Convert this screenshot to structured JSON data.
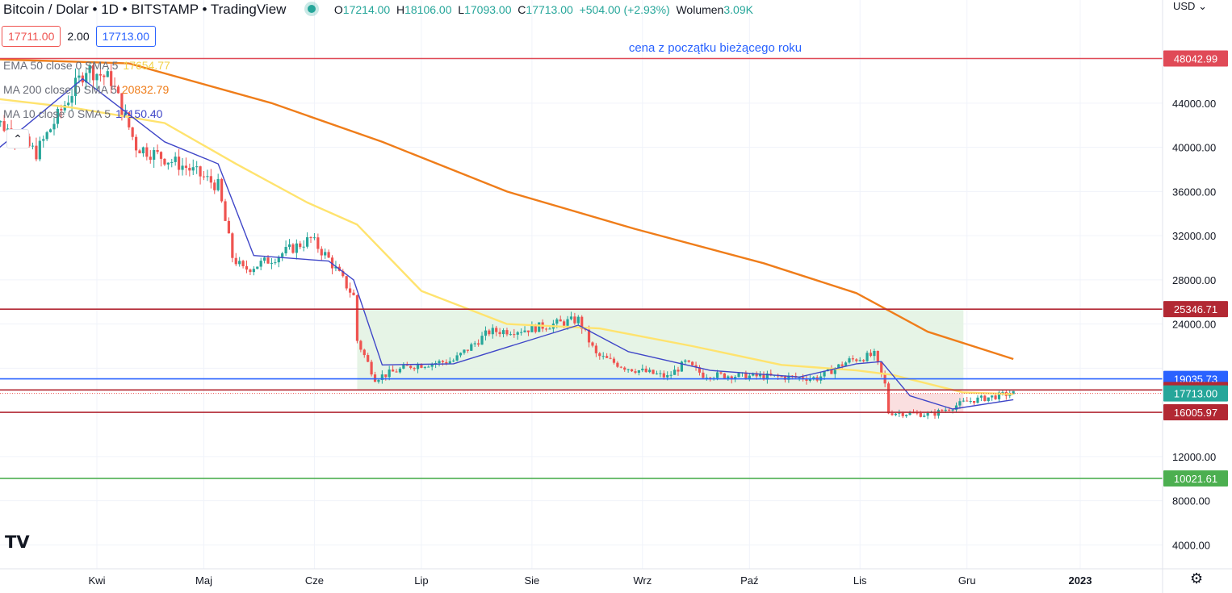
{
  "header": {
    "title": "Bitcoin / Dolar • 1D • BITSTAMP • TradingView",
    "o_label": "O",
    "o_value": "17214.00",
    "h_label": "H",
    "h_value": "18106.00",
    "l_label": "L",
    "l_value": "17093.00",
    "c_label": "C",
    "c_value": "17713.00",
    "change": "+504.00 (+2.93%)",
    "volume_label": "Wolumen",
    "volume_value": "3.09K"
  },
  "quote": {
    "bid": "17711.00",
    "spread": "2.00",
    "ask": "17713.00"
  },
  "indicators": [
    {
      "label": "EMA 50 close 0 SMA 5",
      "value": "17654.77",
      "color": "#ffe36e"
    },
    {
      "label": "MA 200 close 0 SMA 5",
      "value": "20832.79",
      "color": "#ef7d1a"
    },
    {
      "label": "MA 10 close 0 SMA 5",
      "value": "17150.40",
      "color": "#3f46c8"
    }
  ],
  "currency": "USD",
  "icons": {
    "collapse": "chevron-up-icon",
    "settings": "gear-icon",
    "logo": "tradingview-logo-icon"
  },
  "colors": {
    "up": "#26a69a",
    "down": "#ef5350",
    "support": "#b22833",
    "blue_level": "#2962ff",
    "green_level": "#4caf50"
  },
  "chart_data": {
    "type": "candlestick",
    "symbol": "Bitcoin / Dolar",
    "timeframe": "1D",
    "ylim": [
      1000,
      52000
    ],
    "yticks": [
      "44000.00",
      "40000.00",
      "36000.00",
      "32000.00",
      "28000.00",
      "24000.00",
      "12000.00",
      "8000.00",
      "4000.00"
    ],
    "x_labels": [
      "Kwi",
      "Maj",
      "Cze",
      "Lip",
      "Sie",
      "Wrz",
      "Paź",
      "Lis",
      "Gru",
      "2023"
    ],
    "price_levels": [
      {
        "value": 48042.99,
        "label": "48042.99",
        "color": "#e04a57"
      },
      {
        "value": 25346.71,
        "label": "25346.71",
        "color": "#b22833"
      },
      {
        "value": 19035.73,
        "label": "19035.73",
        "color": "#2962ff"
      },
      {
        "value": 18029.94,
        "label": "18029.94",
        "color": "#b22833"
      },
      {
        "value": 17713.0,
        "label": "17713.00",
        "color": "#26a69a"
      },
      {
        "value": 16005.97,
        "label": "16005.97",
        "color": "#b22833"
      },
      {
        "value": 10021.61,
        "label": "10021.61",
        "color": "#4caf50"
      }
    ],
    "annotations": [
      {
        "text": "cena z początku bieżącego roku",
        "color": "#2962ff"
      }
    ],
    "zones": [
      {
        "from": "Jun 13",
        "to": "Nov 30",
        "low": 18029.94,
        "high": 25346.71,
        "color": "#e3f3e3"
      },
      {
        "from": "Nov 9",
        "to": "Nov 30",
        "low": 16005.97,
        "high": 17713.0,
        "color": "#fadcdd"
      }
    ],
    "close_path": [
      [
        "Mar 1",
        43200
      ],
      [
        "Mar 15",
        39500
      ],
      [
        "Mar 29",
        47200
      ],
      [
        "Apr 5",
        46100
      ],
      [
        "Apr 12",
        40100
      ],
      [
        "Apr 26",
        38200
      ],
      [
        "May 5",
        36500
      ],
      [
        "May 9",
        30100
      ],
      [
        "May 12",
        28900
      ],
      [
        "May 18",
        29600
      ],
      [
        "May 31",
        31700
      ],
      [
        "Jun 5",
        29900
      ],
      [
        "Jun 12",
        26500
      ],
      [
        "Jun 13",
        22500
      ],
      [
        "Jun 18",
        19100
      ],
      [
        "Jun 28",
        20200
      ],
      [
        "Jul 10",
        20700
      ],
      [
        "Jul 20",
        23300
      ],
      [
        "Jul 30",
        23500
      ],
      [
        "Aug 14",
        24400
      ],
      [
        "Aug 19",
        21200
      ],
      [
        "Aug 27",
        20100
      ],
      [
        "Sep 8",
        19200
      ],
      [
        "Sep 13",
        20500
      ],
      [
        "Sep 18",
        19400
      ],
      [
        "Sep 28",
        19300
      ],
      [
        "Oct 10",
        19200
      ],
      [
        "Oct 20",
        19100
      ],
      [
        "Oct 29",
        20700
      ],
      [
        "Nov 5",
        21200
      ],
      [
        "Nov 8",
        18500
      ],
      [
        "Nov 9",
        16000
      ],
      [
        "Nov 21",
        15800
      ],
      [
        "Dec 1",
        17000
      ],
      [
        "Dec 13",
        17700
      ],
      [
        "Dec 14",
        17713
      ]
    ],
    "series": [
      {
        "name": "EMA 50",
        "color": "#ffe36e",
        "points": [
          [
            "Mar 1",
            44500
          ],
          [
            "Mar 25",
            43600
          ],
          [
            "Apr 20",
            42200
          ],
          [
            "May 10",
            38500
          ],
          [
            "May 30",
            35000
          ],
          [
            "Jun 13",
            33000
          ],
          [
            "Jul 1",
            27000
          ],
          [
            "Jul 25",
            24000
          ],
          [
            "Aug 20",
            23600
          ],
          [
            "Sep 15",
            22000
          ],
          [
            "Oct 10",
            20300
          ],
          [
            "Oct 31",
            19800
          ],
          [
            "Nov 10",
            19400
          ],
          [
            "Nov 30",
            17800
          ],
          [
            "Dec 14",
            17655
          ]
        ]
      },
      {
        "name": "MA 200",
        "color": "#ef7d1a",
        "points": [
          [
            "Mar 1",
            48000
          ],
          [
            "Apr 10",
            47600
          ],
          [
            "May 20",
            44000
          ],
          [
            "Jun 20",
            40500
          ],
          [
            "Jul 25",
            36000
          ],
          [
            "Aug 30",
            32600
          ],
          [
            "Oct 5",
            29500
          ],
          [
            "Oct 31",
            26800
          ],
          [
            "Nov 20",
            23300
          ],
          [
            "Dec 14",
            20833
          ]
        ]
      },
      {
        "name": "MA 10",
        "color": "#3f46c8",
        "points": [
          [
            "Mar 1",
            39000
          ],
          [
            "Mar 28",
            46200
          ],
          [
            "Apr 20",
            40500
          ],
          [
            "May 5",
            38500
          ],
          [
            "May 15",
            30200
          ],
          [
            "Jun 5",
            29700
          ],
          [
            "Jun 12",
            28000
          ],
          [
            "Jun 20",
            20300
          ],
          [
            "Jul 10",
            20400
          ],
          [
            "Aug 14",
            23900
          ],
          [
            "Aug 28",
            21500
          ],
          [
            "Sep 20",
            19800
          ],
          [
            "Oct 15",
            19200
          ],
          [
            "Oct 31",
            20400
          ],
          [
            "Nov 7",
            20600
          ],
          [
            "Nov 15",
            17500
          ],
          [
            "Nov 27",
            16300
          ],
          [
            "Dec 14",
            17150
          ]
        ]
      }
    ]
  }
}
